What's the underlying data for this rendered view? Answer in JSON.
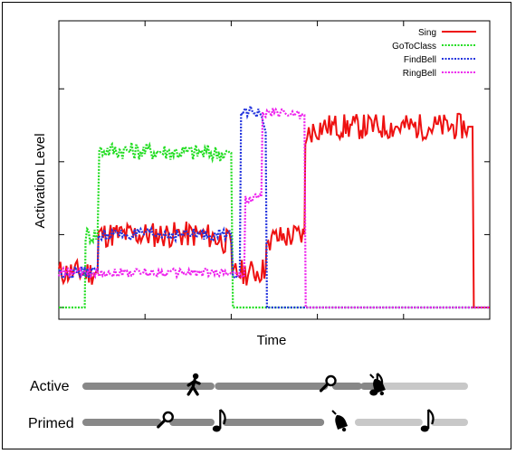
{
  "chart_data": {
    "type": "line",
    "title": "",
    "xlabel": "Time",
    "ylabel": "Activation Level",
    "xlim": [
      0,
      100
    ],
    "ylim": [
      0,
      100
    ],
    "grid": false,
    "legend_position": "top-right",
    "series": [
      {
        "name": "Sing",
        "color": "#ee1111",
        "style": "solid",
        "noise": 4.5,
        "points": [
          [
            0,
            12
          ],
          [
            6,
            12
          ],
          [
            9,
            12
          ],
          [
            9.2,
            25
          ],
          [
            31,
            25
          ],
          [
            35,
            24.5
          ],
          [
            40,
            22
          ],
          [
            40.2,
            12
          ],
          [
            40.5,
            13
          ],
          [
            41,
            12
          ],
          [
            45,
            12
          ],
          [
            48,
            13
          ],
          [
            48.2,
            22
          ],
          [
            49,
            23.5
          ],
          [
            57,
            25
          ],
          [
            57.2,
            56
          ],
          [
            58,
            60
          ],
          [
            61,
            62
          ],
          [
            75,
            62
          ],
          [
            95,
            62
          ],
          [
            96,
            62
          ],
          [
            96.3,
            0
          ],
          [
            100,
            0
          ]
        ]
      },
      {
        "name": "GoToClass",
        "color": "#22dd22",
        "style": "dotted",
        "noise": 3,
        "points": [
          [
            0,
            0
          ],
          [
            6,
            0
          ],
          [
            6.2,
            25
          ],
          [
            9,
            25
          ],
          [
            9.4,
            54
          ],
          [
            12,
            54
          ],
          [
            36,
            53
          ],
          [
            40,
            53
          ],
          [
            40.4,
            0
          ],
          [
            100,
            0
          ]
        ]
      },
      {
        "name": "FindBell",
        "color": "#2233dd",
        "style": "dotted",
        "noise": 2,
        "points": [
          [
            0,
            12
          ],
          [
            6,
            12
          ],
          [
            9,
            12
          ],
          [
            9.2,
            25
          ],
          [
            40,
            25
          ],
          [
            40.4,
            12
          ],
          [
            42,
            12
          ],
          [
            42.3,
            68
          ],
          [
            47,
            66
          ],
          [
            48,
            60
          ],
          [
            48.3,
            0
          ],
          [
            100,
            0
          ]
        ]
      },
      {
        "name": "RingBell",
        "color": "#ee22ee",
        "style": "dotted",
        "noise": 1.5,
        "points": [
          [
            0,
            12
          ],
          [
            40,
            12
          ],
          [
            41,
            12
          ],
          [
            41.3,
            11
          ],
          [
            43,
            11
          ],
          [
            43.3,
            37
          ],
          [
            47,
            38
          ],
          [
            47.3,
            66
          ],
          [
            50,
            67
          ],
          [
            57,
            66
          ],
          [
            57.3,
            0
          ],
          [
            100,
            0
          ]
        ]
      }
    ],
    "timelines": [
      {
        "label": "Active",
        "segments": [
          [
            0,
            0.33
          ],
          [
            0.35,
            0.63
          ],
          [
            0.66,
            0.72
          ],
          [
            0.735,
            0.76
          ],
          [
            0.79,
            1.0
          ]
        ],
        "segment_colors": [
          "#888888",
          "#888888",
          "#888888",
          "#888888",
          "#c8c8c8"
        ],
        "icons": [
          {
            "name": "walking-person-icon",
            "at": 0.285
          },
          {
            "name": "magnifier-icon",
            "at": 0.64
          },
          {
            "name": "bell-icon",
            "at": 0.77
          },
          {
            "name": "music-note-icon",
            "at": 1.17
          }
        ]
      },
      {
        "label": "Primed",
        "segments": [
          [
            0,
            0.19
          ],
          [
            0.23,
            0.33
          ],
          [
            0.37,
            0.62
          ],
          [
            0.72,
            0.88
          ],
          [
            0.92,
            1.0
          ]
        ],
        "segment_colors": [
          "#888888",
          "#888888",
          "#888888",
          "#c8c8c8",
          "#c8c8c8"
        ],
        "icons": [
          {
            "name": "magnifier-icon",
            "at": 0.21
          },
          {
            "name": "music-note-icon",
            "at": 0.35
          },
          {
            "name": "bell-icon",
            "at": 0.67
          },
          {
            "name": "music-note-icon",
            "at": 0.9
          }
        ]
      }
    ]
  }
}
